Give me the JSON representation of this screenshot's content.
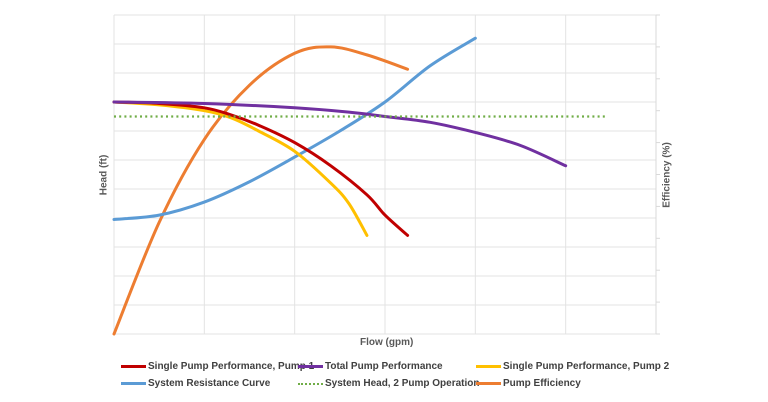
{
  "chart_data": {
    "type": "line",
    "title": "",
    "xlabel": "Flow (gpm)",
    "ylabel": "Head (ft)",
    "y2label": "Efficiency (%)",
    "xlim": [
      0,
      6
    ],
    "ylim": [
      0,
      11
    ],
    "y2lim": [
      0,
      10
    ],
    "x_ticks_labeled": false,
    "y_ticks_labeled": false,
    "grid": true,
    "legend_position": "bottom",
    "series": [
      {
        "name": "Single Pump Performance, Pump 1",
        "color": "#C00000",
        "style": "solid",
        "axis": "primary",
        "x": [
          0,
          0.5,
          1.0,
          1.3,
          1.6,
          2.0,
          2.4,
          2.8,
          3.0,
          3.25
        ],
        "y": [
          8.0,
          7.95,
          7.8,
          7.55,
          7.2,
          6.6,
          5.8,
          4.8,
          4.1,
          3.4
        ]
      },
      {
        "name": "Total Pump Performance",
        "color": "#7030A0",
        "style": "solid",
        "axis": "primary",
        "x": [
          0,
          1.0,
          2.0,
          2.6,
          3.0,
          3.5,
          4.0,
          4.5,
          5.0
        ],
        "y": [
          8.0,
          7.95,
          7.8,
          7.65,
          7.5,
          7.3,
          6.95,
          6.5,
          5.8
        ]
      },
      {
        "name": "Single Pump Performance, Pump 2",
        "color": "#FFC000",
        "style": "solid",
        "axis": "primary",
        "x": [
          0,
          0.5,
          1.0,
          1.3,
          1.6,
          2.0,
          2.4,
          2.6,
          2.8
        ],
        "y": [
          8.0,
          7.9,
          7.7,
          7.45,
          7.0,
          6.3,
          5.2,
          4.5,
          3.4
        ]
      },
      {
        "name": "System Resistance Curve",
        "color": "#5B9BD5",
        "style": "solid",
        "axis": "primary",
        "x": [
          0,
          0.5,
          1.0,
          1.5,
          2.0,
          2.5,
          3.0,
          3.5,
          4.0
        ],
        "y": [
          3.95,
          4.1,
          4.55,
          5.25,
          6.1,
          7.0,
          8.0,
          9.25,
          10.2
        ]
      },
      {
        "name": "System Head, 2 Pump Operation",
        "color": "#70AD47",
        "style": "dotted",
        "axis": "primary",
        "x": [
          0,
          5.45
        ],
        "y": [
          7.5,
          7.5
        ]
      },
      {
        "name": "Pump Efficiency",
        "color": "#ED7D31",
        "style": "solid",
        "axis": "secondary",
        "x": [
          0,
          0.5,
          1.0,
          1.5,
          2.0,
          2.4,
          2.8,
          3.25
        ],
        "y": [
          0,
          3.5,
          6.1,
          7.8,
          8.8,
          9.0,
          8.75,
          8.3
        ]
      }
    ]
  },
  "legend": {
    "items": [
      {
        "label": "Single Pump Performance, Pump 1",
        "color": "#C00000",
        "style": "solid"
      },
      {
        "label": "Total Pump Performance",
        "color": "#7030A0",
        "style": "solid"
      },
      {
        "label": "Single Pump Performance, Pump 2",
        "color": "#FFC000",
        "style": "solid"
      },
      {
        "label": "System Resistance Curve",
        "color": "#5B9BD5",
        "style": "solid"
      },
      {
        "label": "System Head, 2 Pump Operation",
        "color": "#70AD47",
        "style": "dotted"
      },
      {
        "label": "Pump Efficiency",
        "color": "#ED7D31",
        "style": "solid"
      }
    ]
  },
  "axes": {
    "x_title": "Flow (gpm)",
    "y_title": "Head (ft)",
    "y2_title": "Efficiency (%)"
  }
}
